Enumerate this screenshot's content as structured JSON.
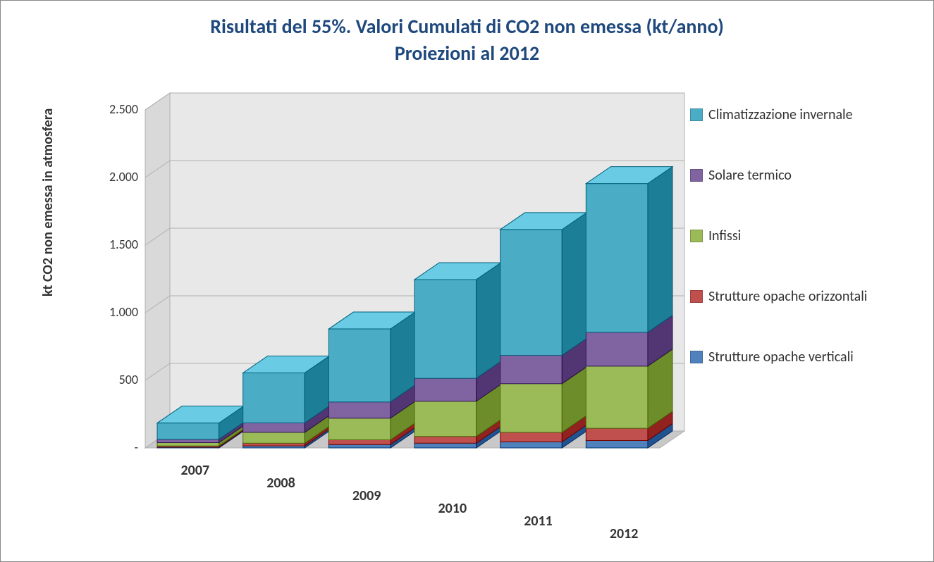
{
  "chart": {
    "type": "stacked-bar-3d",
    "title_line1": "Risultati del 55%. Valori Cumulati di CO2 non emessa (kt/anno)",
    "title_line2": "Proiezioni al 2012",
    "title_color": "#1f497d",
    "title_fontsize": 28,
    "title_bold": true,
    "ylabel": "kt CO2 non emessa in atmosfera",
    "ylabel_fontsize": 20,
    "ylabel_bold": true,
    "ylim": [
      0,
      2500
    ],
    "ytick_step": 500,
    "ytick_format": "thousands_dot",
    "ytick_labels": [
      "-",
      "500",
      "1.000",
      "1.500",
      "2.000",
      "2.500"
    ],
    "categories": [
      "2007",
      "2008",
      "2009",
      "2010",
      "2011",
      "2012"
    ],
    "xlabel_fontsize": 20,
    "xlabel_bold": true,
    "series": [
      {
        "name": "Strutture opache verticali",
        "color": "#4f81bd",
        "values": [
          6,
          15,
          25,
          35,
          45,
          55
        ]
      },
      {
        "name": "Strutture opache orizzontali",
        "color": "#c0504d",
        "values": [
          8,
          20,
          35,
          50,
          70,
          90
        ]
      },
      {
        "name": "Infissi",
        "color": "#9bbb59",
        "values": [
          25,
          80,
          160,
          260,
          360,
          460
        ]
      },
      {
        "name": "Solare termico",
        "color": "#8064a2",
        "values": [
          25,
          70,
          120,
          170,
          210,
          250
        ]
      },
      {
        "name": "Climatizzazione invernale",
        "color": "#4bacc6",
        "values": [
          120,
          370,
          540,
          730,
          930,
          1100
        ]
      }
    ],
    "legend_order": [
      "Climatizzazione invernale",
      "Solare termico",
      "Infissi",
      "Strutture opache orizzontali",
      "Strutture opache verticali"
    ],
    "background_color": "#ffffff",
    "grid_color": "#b0b0b0",
    "wall_fill": "#e8e8e8",
    "floor_fill": "#c8c8c8",
    "side_darken": 0.18,
    "top_lighten": 0.12,
    "depth_dx": 35,
    "depth_dy": -24,
    "bar_width_ratio": 0.72,
    "border_color": "#888888"
  }
}
